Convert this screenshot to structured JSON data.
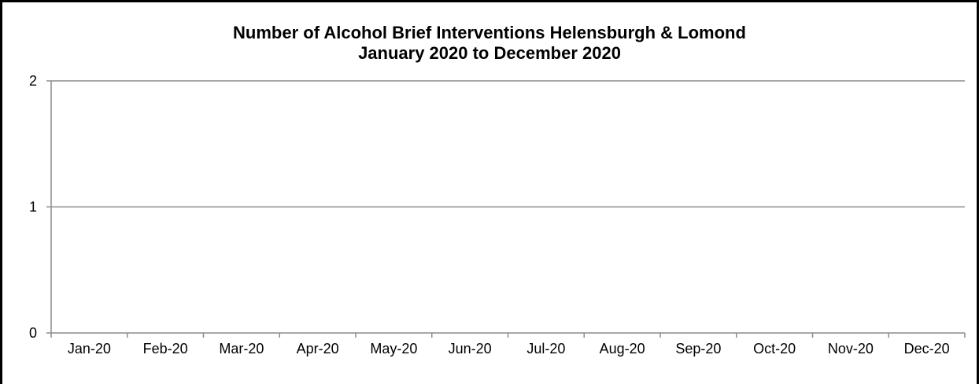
{
  "chart_data": {
    "type": "line",
    "title": "Number of Alcohol Brief Interventions Helensburgh & Lomond",
    "subtitle": "January 2020 to December 2020",
    "xlabel": "",
    "ylabel": "",
    "categories": [
      "Jan-20",
      "Feb-20",
      "Mar-20",
      "Apr-20",
      "May-20",
      "Jun-20",
      "Jul-20",
      "Aug-20",
      "Sep-20",
      "Oct-20",
      "Nov-20",
      "Dec-20"
    ],
    "series": [],
    "ylim": [
      0,
      2
    ],
    "yticks": [
      "0",
      "1",
      "2"
    ],
    "grid": true,
    "legend": "none",
    "colors": {
      "gridline": "#8c8c8c",
      "axis": "#8c8c8c",
      "frame": "#000000"
    }
  }
}
